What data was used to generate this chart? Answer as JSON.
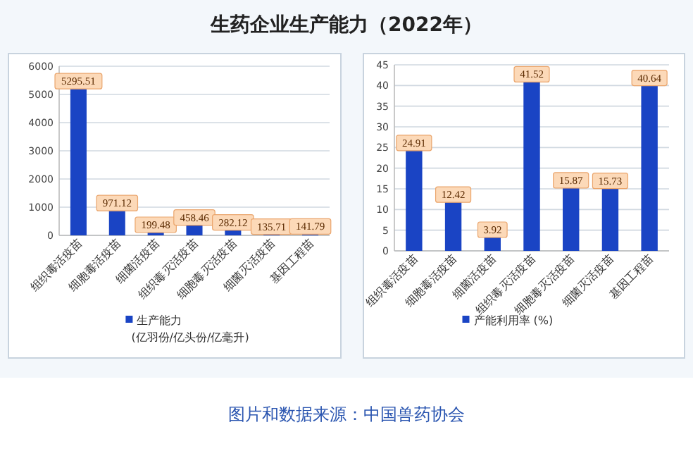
{
  "chart_data": [
    {
      "type": "bar",
      "title": "生药企业生产能力（2022年）",
      "categories": [
        "组织毒活疫苗",
        "细胞毒活疫苗",
        "细菌活疫苗",
        "组织毒灭活疫苗",
        "细胞毒灭活疫苗",
        "细菌灭活疫苗",
        "基因工程苗"
      ],
      "series": [
        {
          "name": "生产能力\n(亿羽份/亿头份/亿毫升)",
          "color": "#1a44c4",
          "values": [
            5295.51,
            971.12,
            199.48,
            458.46,
            282.12,
            135.71,
            141.79
          ]
        }
      ],
      "ylim": [
        0,
        6000
      ],
      "yticks": [
        0,
        1000,
        2000,
        3000,
        4000,
        5000,
        6000
      ],
      "grid": "y",
      "legend": "bottom",
      "data_labels": true
    },
    {
      "type": "bar",
      "categories": [
        "组织毒活疫苗",
        "细胞毒活疫苗",
        "细菌活疫苗",
        "组织毒灭活疫苗",
        "细胞毒灭活疫苗",
        "细菌灭活疫苗",
        "基因工程苗"
      ],
      "series": [
        {
          "name": "产能利用率 (%)",
          "color": "#1a44c4",
          "values": [
            24.91,
            12.42,
            3.92,
            41.52,
            15.87,
            15.73,
            40.64
          ]
        }
      ],
      "ylim": [
        0,
        45
      ],
      "yticks": [
        0,
        5,
        10,
        15,
        20,
        25,
        30,
        35,
        40,
        45
      ],
      "grid": "y",
      "legend": "bottom",
      "data_labels": true,
      "annotations": [
        "图片和数据来源：中国兽药协会"
      ]
    }
  ]
}
